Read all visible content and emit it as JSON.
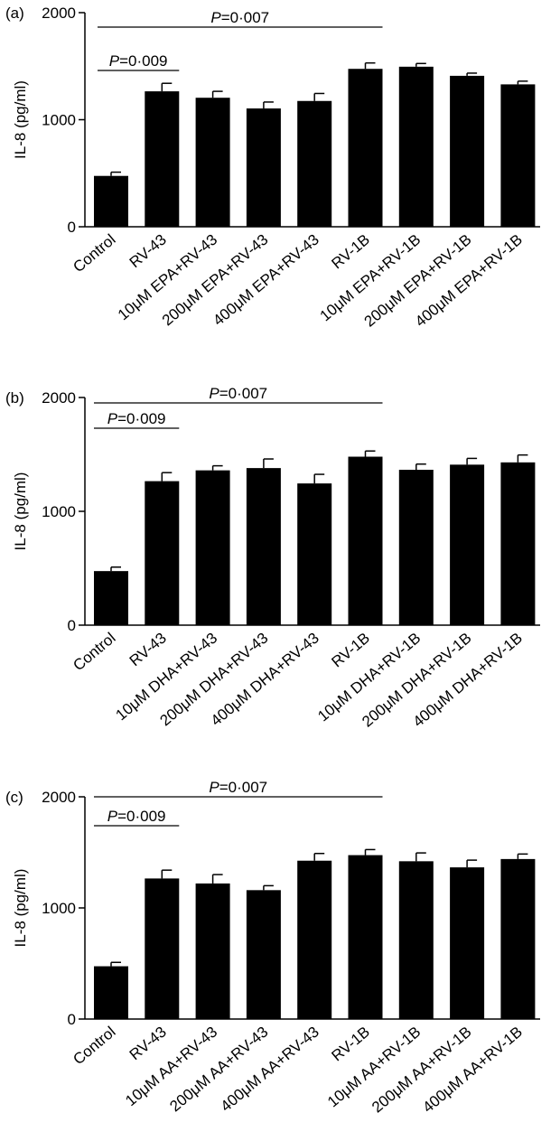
{
  "chart_data": [
    {
      "type": "bar",
      "panel_label": "(a)",
      "ylabel": "IL-8 (pg/ml)",
      "ylim": [
        0,
        2000
      ],
      "yticks": [
        "0",
        "1000",
        "2000"
      ],
      "categories": [
        "Control",
        "RV-43",
        "10μM EPA+RV-43",
        "200μM EPA+RV-43",
        "400μM EPA+RV-43",
        "RV-1B",
        "10μM EPA+RV-1B",
        "200μM EPA+RV-1B",
        "400μM EPA+RV-1B"
      ],
      "values": [
        475,
        1265,
        1205,
        1105,
        1175,
        1475,
        1495,
        1410,
        1330
      ],
      "errors": [
        35,
        75,
        60,
        60,
        70,
        55,
        30,
        25,
        30
      ],
      "annotations": [
        {
          "italic": "P",
          "text": "=0·009",
          "from": 0,
          "to": 1
        },
        {
          "italic": "P",
          "text": "=0·007",
          "from": 0,
          "to": 5
        }
      ]
    },
    {
      "type": "bar",
      "panel_label": "(b)",
      "ylabel": "IL-8 (pg/ml)",
      "ylim": [
        0,
        2000
      ],
      "yticks": [
        "0",
        "1000",
        "2000"
      ],
      "categories": [
        "Control",
        "RV-43",
        "10μM DHA+RV-43",
        "200μM DHA+RV-43",
        "400μM DHA+RV-43",
        "RV-1B",
        "10μM DHA+RV-1B",
        "200μM DHA+RV-1B",
        "400μM DHA+RV-1B"
      ],
      "values": [
        475,
        1265,
        1360,
        1380,
        1245,
        1480,
        1365,
        1410,
        1430
      ],
      "errors": [
        35,
        75,
        40,
        80,
        80,
        50,
        50,
        55,
        65
      ],
      "annotations": [
        {
          "italic": "P",
          "text": "=0·009",
          "from": 0,
          "to": 1
        },
        {
          "italic": "P",
          "text": "=0·007",
          "from": 0,
          "to": 5
        }
      ]
    },
    {
      "type": "bar",
      "panel_label": "(c)",
      "ylabel": "IL-8 (pg/ml)",
      "ylim": [
        0,
        2000
      ],
      "yticks": [
        "0",
        "1000",
        "2000"
      ],
      "categories": [
        "Control",
        "RV-43",
        "10μM AA+RV-43",
        "200μM AA+RV-43",
        "400μM AA+RV-43",
        "RV-1B",
        "10μM AA+RV-1B",
        "200μM AA+RV-1B",
        "400μM AA+RV-1B"
      ],
      "values": [
        475,
        1265,
        1220,
        1160,
        1425,
        1475,
        1420,
        1365,
        1440
      ],
      "errors": [
        35,
        75,
        80,
        40,
        65,
        50,
        75,
        65,
        45
      ],
      "annotations": [
        {
          "italic": "P",
          "text": "=0·009",
          "from": 0,
          "to": 1
        },
        {
          "italic": "P",
          "text": "=0·007",
          "from": 0,
          "to": 5
        }
      ]
    }
  ]
}
